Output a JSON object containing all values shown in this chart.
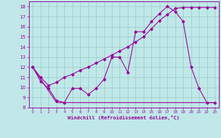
{
  "xlabel": "Windchill (Refroidissement éolien,°C)",
  "xlim": [
    -0.5,
    23.5
  ],
  "ylim": [
    8,
    18.5
  ],
  "yticks": [
    8,
    9,
    10,
    11,
    12,
    13,
    14,
    15,
    16,
    17,
    18
  ],
  "xticks": [
    0,
    1,
    2,
    3,
    4,
    5,
    6,
    7,
    8,
    9,
    10,
    11,
    12,
    13,
    14,
    15,
    16,
    17,
    18,
    19,
    20,
    21,
    22,
    23
  ],
  "bg_color": "#c0e8e8",
  "grid_color": "#98c8c8",
  "line_color": "#990099",
  "line1_x": [
    0,
    1,
    2,
    3,
    4,
    5,
    6,
    7,
    8,
    9,
    10,
    11,
    12,
    13,
    14,
    15,
    16,
    17,
    18,
    19,
    20,
    21,
    22,
    23
  ],
  "line1_y": [
    12.0,
    10.6,
    9.9,
    8.7,
    8.5,
    9.9,
    9.9,
    9.3,
    9.9,
    10.8,
    13.0,
    13.0,
    11.5,
    15.5,
    15.5,
    16.5,
    17.3,
    18.0,
    17.5,
    16.5,
    12.0,
    9.9,
    8.5,
    8.5
  ],
  "line2_x": [
    0,
    1,
    2,
    3,
    4,
    5,
    6,
    7,
    8,
    9,
    10,
    11,
    12,
    13,
    14,
    15,
    16,
    17,
    18,
    19,
    20,
    21,
    22,
    23
  ],
  "line2_y": [
    12.0,
    11.0,
    10.2,
    10.5,
    11.0,
    11.3,
    11.7,
    12.0,
    12.4,
    12.8,
    13.2,
    13.6,
    14.0,
    14.5,
    15.0,
    15.8,
    16.6,
    17.2,
    17.8,
    17.9,
    17.9,
    17.9,
    17.9,
    17.9
  ],
  "line3_x": [
    0,
    3,
    4,
    5,
    6,
    7,
    8,
    9,
    10,
    11,
    12,
    13,
    14,
    15,
    16,
    17,
    18,
    19,
    20,
    21,
    22,
    23
  ],
  "line3_y": [
    12.0,
    8.5,
    8.5,
    8.5,
    8.5,
    8.5,
    8.5,
    8.5,
    8.5,
    8.5,
    8.5,
    8.5,
    8.5,
    8.5,
    8.5,
    8.5,
    8.5,
    8.5,
    8.5,
    8.5,
    8.5,
    8.5
  ]
}
